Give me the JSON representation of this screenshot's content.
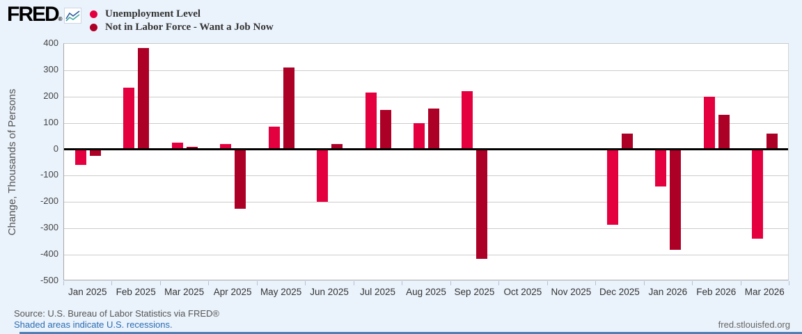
{
  "header": {
    "logo_text": "FRED",
    "registered_mark": "®",
    "legend_items": [
      {
        "label": "Unemployment Level",
        "color": "#e4003e"
      },
      {
        "label": "Not in Labor Force - Want a Job Now",
        "color": "#ac0026"
      }
    ]
  },
  "chart_data": {
    "type": "bar",
    "categories": [
      "Jan 2025",
      "Feb 2025",
      "Mar 2025",
      "Apr 2025",
      "May 2025",
      "Jun 2025",
      "Jul 2025",
      "Aug 2025",
      "Sep 2025",
      "Oct 2025",
      "Nov 2025",
      "Dec 2025",
      "Jan 2026",
      "Feb 2026",
      "Mar 2026"
    ],
    "series": [
      {
        "name": "Unemployment Level",
        "color": "#e4003e",
        "values": [
          -60,
          235,
          25,
          20,
          85,
          -200,
          215,
          100,
          220,
          0,
          0,
          -285,
          -140,
          200,
          -340
        ]
      },
      {
        "name": "Not in Labor Force - Want a Job Now",
        "color": "#ac0026",
        "values": [
          -25,
          385,
          10,
          -225,
          310,
          20,
          150,
          155,
          -415,
          0,
          0,
          60,
          -380,
          130,
          60
        ]
      }
    ],
    "title": "",
    "xlabel": "",
    "ylabel": "Change, Thousands of Persons",
    "ylim": [
      -500,
      400
    ],
    "y_ticks": [
      400,
      300,
      200,
      100,
      0,
      -100,
      -200,
      -300,
      -400,
      -500
    ],
    "grid": true,
    "zero_line": true,
    "legend_position": "top-left"
  },
  "footer": {
    "source_line": "Source: U.S. Bureau of Labor Statistics via FRED®",
    "recession_note": "Shaded areas indicate U.S. recessions.",
    "site_link": "fred.stlouisfed.org"
  },
  "colors": {
    "page_background": "#eaf2fb",
    "plot_background": "#ffffff",
    "gridline": "#cccccc",
    "zero_line": "#000000",
    "series1": "#e4003e",
    "series2": "#ac0026",
    "link_blue": "#2a6db3",
    "text_gray": "#555555"
  }
}
